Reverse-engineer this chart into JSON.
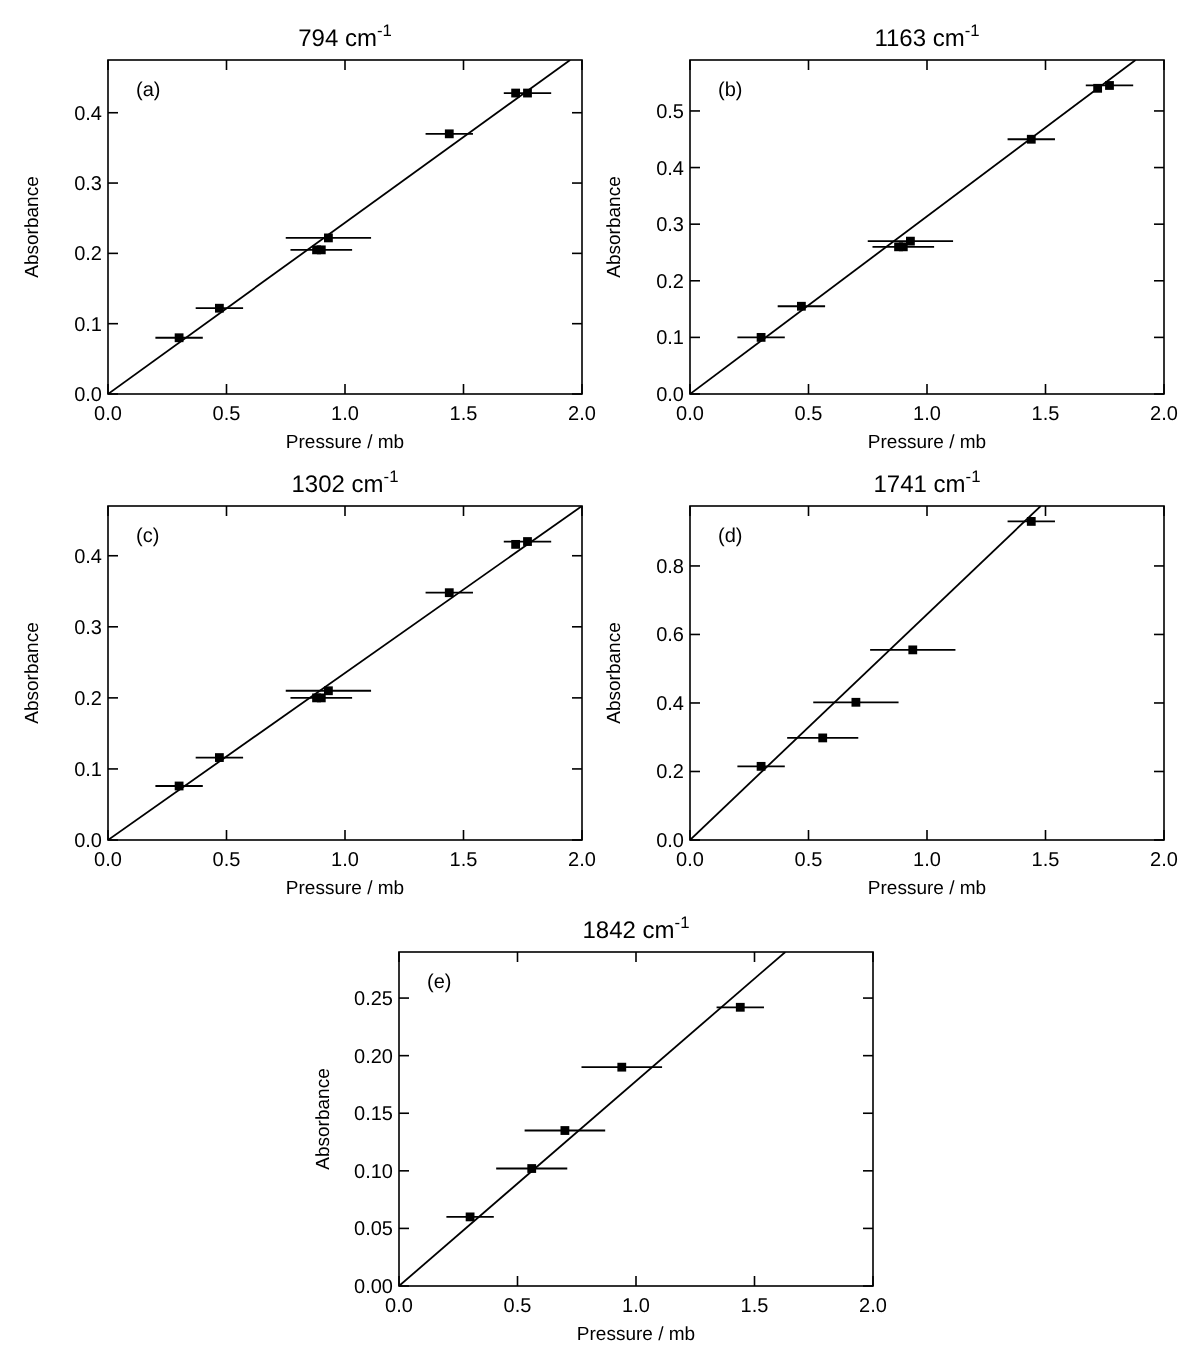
{
  "chart_data": [
    {
      "type": "scatter",
      "title": "794 cm$^{-1}$",
      "xlabel": "Pressure / mb",
      "ylabel": "Absorbance",
      "annotations": [
        "(a)"
      ],
      "xlim": [
        0,
        2
      ],
      "ylim": [
        0,
        0.475
      ],
      "xticks": [
        {
          "value": 0,
          "label": "0.0"
        },
        {
          "value": 0.5,
          "label": "0.5"
        },
        {
          "value": 1,
          "label": "1.0"
        },
        {
          "value": 1.5,
          "label": "1.5"
        },
        {
          "value": 2,
          "label": "2.0"
        }
      ],
      "yticks": [
        {
          "value": 0,
          "label": "0.0"
        },
        0.1,
        0.2,
        0.3,
        0.4
      ],
      "series": [
        {
          "type": "scatter",
          "marker": "square",
          "color": "#000000",
          "x": [
            0.3,
            0.47,
            0.88,
            0.9,
            0.93,
            1.44,
            1.72,
            1.77
          ],
          "values": [
            0.08,
            0.122,
            0.205,
            0.205,
            0.222,
            0.37,
            0.428,
            0.428
          ],
          "xerrors": [
            0.1,
            0.1,
            null,
            0.13,
            0.18,
            0.1,
            null,
            0.1
          ]
        },
        {
          "type": "line",
          "color": "#000000",
          "x": [
            0,
            1.95
          ],
          "values": [
            0,
            0.475
          ]
        }
      ]
    },
    {
      "type": "scatter",
      "title": "1163 cm$^{-1}$",
      "xlabel": "Pressure / mb",
      "ylabel": "Absorbance",
      "annotations": [
        "(b)"
      ],
      "xlim": [
        0,
        2
      ],
      "ylim": [
        0,
        0.59
      ],
      "xticks": [
        {
          "value": 0,
          "label": "0.0"
        },
        {
          "value": 0.5,
          "label": "0.5"
        },
        {
          "value": 1,
          "label": "1.0"
        },
        {
          "value": 1.5,
          "label": "1.5"
        },
        {
          "value": 2,
          "label": "2.0"
        }
      ],
      "yticks": [
        {
          "value": 0,
          "label": "0.0"
        },
        0.1,
        0.2,
        0.3,
        0.4,
        0.5
      ],
      "series": [
        {
          "type": "scatter",
          "marker": "square",
          "color": "#000000",
          "x": [
            0.3,
            0.47,
            0.88,
            0.9,
            0.93,
            1.44,
            1.72,
            1.77
          ],
          "values": [
            0.1,
            0.155,
            0.26,
            0.26,
            0.27,
            0.45,
            0.54,
            0.545
          ],
          "xerrors": [
            0.1,
            0.1,
            null,
            0.13,
            0.18,
            0.1,
            null,
            0.1
          ]
        },
        {
          "type": "line",
          "color": "#000000",
          "x": [
            0,
            1.88
          ],
          "values": [
            0,
            0.59
          ]
        }
      ]
    },
    {
      "type": "scatter",
      "title": "1302 cm$^{-1}$",
      "xlabel": "Pressure / mb",
      "ylabel": "Absorbance",
      "annotations": [
        "(c)"
      ],
      "xlim": [
        0,
        2
      ],
      "ylim": [
        0,
        0.47
      ],
      "xticks": [
        {
          "value": 0,
          "label": "0.0"
        },
        {
          "value": 0.5,
          "label": "0.5"
        },
        {
          "value": 1,
          "label": "1.0"
        },
        {
          "value": 1.5,
          "label": "1.5"
        },
        {
          "value": 2,
          "label": "2.0"
        }
      ],
      "yticks": [
        {
          "value": 0,
          "label": "0.0"
        },
        0.1,
        0.2,
        0.3,
        0.4
      ],
      "series": [
        {
          "type": "scatter",
          "marker": "square",
          "color": "#000000",
          "x": [
            0.3,
            0.47,
            0.88,
            0.9,
            0.93,
            1.44,
            1.72,
            1.77
          ],
          "values": [
            0.076,
            0.116,
            0.2,
            0.2,
            0.21,
            0.348,
            0.416,
            0.42
          ],
          "xerrors": [
            0.1,
            0.1,
            null,
            0.13,
            0.18,
            0.1,
            null,
            0.1
          ]
        },
        {
          "type": "line",
          "color": "#000000",
          "x": [
            0,
            2
          ],
          "values": [
            0,
            0.47
          ]
        }
      ]
    },
    {
      "type": "scatter",
      "title": "1741 cm$^{-1}$",
      "xlabel": "Pressure / mb",
      "ylabel": "Absorbance",
      "annotations": [
        "(d)"
      ],
      "xlim": [
        0,
        2
      ],
      "ylim": [
        0,
        0.975
      ],
      "xticks": [
        {
          "value": 0,
          "label": "0.0"
        },
        {
          "value": 0.5,
          "label": "0.5"
        },
        {
          "value": 1,
          "label": "1.0"
        },
        {
          "value": 1.5,
          "label": "1.5"
        },
        {
          "value": 2,
          "label": "2.0"
        }
      ],
      "yticks": [
        {
          "value": 0,
          "label": "0.0"
        },
        0.2,
        0.4,
        0.6,
        0.8
      ],
      "series": [
        {
          "type": "scatter",
          "marker": "square",
          "color": "#000000",
          "x": [
            0.3,
            0.56,
            0.7,
            0.94,
            1.44
          ],
          "values": [
            0.215,
            0.298,
            0.402,
            0.555,
            0.93
          ],
          "xerrors": [
            0.1,
            0.15,
            0.18,
            0.18,
            0.1
          ]
        },
        {
          "type": "line",
          "color": "#000000",
          "x": [
            0,
            1.48
          ],
          "values": [
            0,
            0.975
          ]
        }
      ]
    },
    {
      "type": "scatter",
      "title": "1842 cm$^{-1}$",
      "xlabel": "Pressure / mb",
      "ylabel": "Absorbance",
      "annotations": [
        "(e)"
      ],
      "xlim": [
        0,
        2
      ],
      "ylim": [
        0,
        0.29
      ],
      "xticks": [
        {
          "value": 0,
          "label": "0.0"
        },
        {
          "value": 0.5,
          "label": "0.5"
        },
        {
          "value": 1,
          "label": "1.0"
        },
        {
          "value": 1.5,
          "label": "1.5"
        },
        {
          "value": 2,
          "label": "2.0"
        }
      ],
      "yticks": [
        {
          "value": 0,
          "label": "0.00"
        },
        0.05,
        {
          "value": 0.1,
          "label": "0.10"
        },
        0.15,
        {
          "value": 0.2,
          "label": "0.20"
        },
        0.25
      ],
      "series": [
        {
          "type": "scatter",
          "marker": "square",
          "color": "#000000",
          "x": [
            0.3,
            0.56,
            0.7,
            0.94,
            1.44
          ],
          "values": [
            0.06,
            0.102,
            0.135,
            0.19,
            0.242
          ],
          "xerrors": [
            0.1,
            0.15,
            0.17,
            0.17,
            0.1
          ]
        },
        {
          "type": "line",
          "color": "#000000",
          "x": [
            0,
            1.63
          ],
          "values": [
            0,
            0.29
          ]
        }
      ]
    }
  ]
}
